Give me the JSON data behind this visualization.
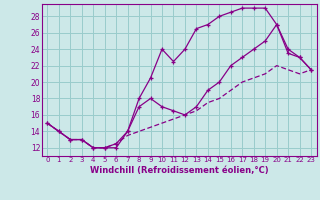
{
  "xlabel": "Windchill (Refroidissement éolien,°C)",
  "bg_color": "#cce8e8",
  "line_color": "#880088",
  "grid_color": "#99cccc",
  "x_ticks": [
    0,
    1,
    2,
    3,
    4,
    5,
    6,
    7,
    8,
    9,
    10,
    11,
    12,
    13,
    14,
    15,
    16,
    17,
    18,
    19,
    20,
    21,
    22,
    23
  ],
  "y_ticks": [
    12,
    14,
    16,
    18,
    20,
    22,
    24,
    26,
    28
  ],
  "ylim": [
    11.0,
    29.5
  ],
  "xlim": [
    -0.5,
    23.5
  ],
  "line1_x": [
    0,
    1,
    2,
    3,
    4,
    5,
    6,
    7,
    8,
    9,
    10,
    11,
    12,
    13,
    14,
    15,
    16,
    17,
    18,
    19,
    20,
    21,
    22,
    23
  ],
  "line1_y": [
    15,
    14,
    13,
    13,
    12,
    12,
    12,
    14,
    18,
    20.5,
    24,
    22.5,
    24,
    26.5,
    27,
    28,
    28.5,
    29,
    29,
    29,
    27,
    24,
    23,
    21.5
  ],
  "line2_x": [
    0,
    1,
    2,
    3,
    4,
    5,
    6,
    7,
    8,
    9,
    10,
    11,
    12,
    13,
    14,
    15,
    16,
    17,
    18,
    19,
    20,
    21,
    22,
    23
  ],
  "line2_y": [
    15,
    14,
    13,
    13,
    12,
    12,
    12.5,
    14,
    17,
    18,
    17,
    16.5,
    16,
    17,
    19,
    20,
    22,
    23,
    24,
    25,
    27,
    23.5,
    23,
    21.5
  ],
  "line3_x": [
    0,
    1,
    2,
    3,
    4,
    5,
    6,
    7,
    8,
    9,
    10,
    11,
    12,
    13,
    14,
    15,
    16,
    17,
    18,
    19,
    20,
    21,
    22,
    23
  ],
  "line3_y": [
    15,
    14,
    13,
    13,
    12,
    12,
    12.5,
    13.5,
    14,
    14.5,
    15,
    15.5,
    16,
    16.5,
    17.5,
    18,
    19,
    20,
    20.5,
    21,
    22,
    21.5,
    21,
    21.5
  ]
}
